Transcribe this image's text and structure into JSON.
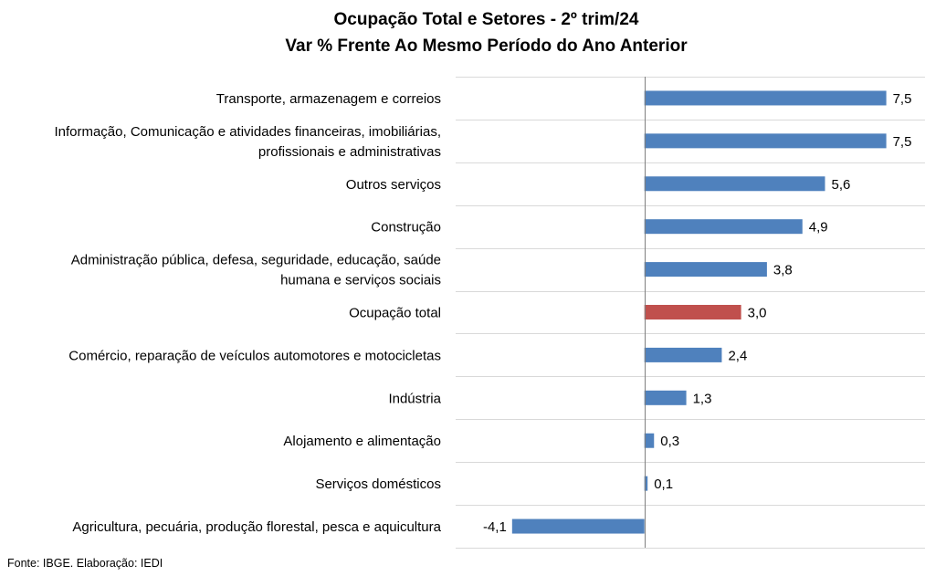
{
  "chart_data": {
    "type": "bar",
    "orientation": "horizontal",
    "title": "Ocupação Total e Setores - 2º trim/24",
    "subtitle": "Var % Frente Ao Mesmo Período do Ano Anterior",
    "categories": [
      [
        "Transporte, armazenagem e correios"
      ],
      [
        "Informação, Comunicação e atividades financeiras, imobiliárias,",
        "profissionais e administrativas"
      ],
      [
        "Outros serviços"
      ],
      [
        "Construção"
      ],
      [
        "Administração pública, defesa, seguridade, educação, saúde",
        "humana e serviços sociais"
      ],
      [
        "Ocupação total"
      ],
      [
        "Comércio, reparação de veículos automotores e motocicletas"
      ],
      [
        "Indústria"
      ],
      [
        "Alojamento e alimentação"
      ],
      [
        "Serviços domésticos"
      ],
      [
        "Agricultura, pecuária, produção florestal, pesca e aquicultura"
      ]
    ],
    "values": [
      7.5,
      7.5,
      5.6,
      4.9,
      3.8,
      3.0,
      2.4,
      1.3,
      0.3,
      0.1,
      -4.1
    ],
    "data_labels": [
      "7,5",
      "7,5",
      "5,6",
      "4,9",
      "3,8",
      "3,0",
      "2,4",
      "1,3",
      "0,3",
      "0,1",
      "-4,1"
    ],
    "highlight_index": 5,
    "colors": {
      "bar": "#4f81bd",
      "highlight": "#c0504d",
      "grid": "#d9d9d9",
      "axis": "#808080"
    },
    "xlim": [
      -5.85,
      8.7
    ],
    "grid": true,
    "legend": "none"
  },
  "source": "Fonte: IBGE. Elaboração: IEDI"
}
